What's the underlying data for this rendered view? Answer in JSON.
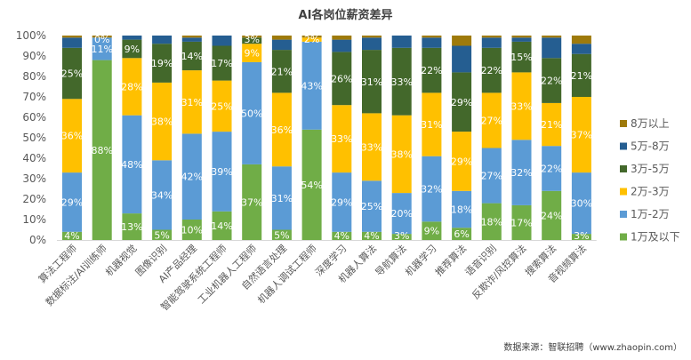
{
  "chart_data": {
    "type": "bar",
    "stacked": "percent",
    "title": "AI各岗位薪资差异",
    "xlabel": "",
    "ylabel": "",
    "ylim": [
      0,
      100
    ],
    "yticks": [
      "0%",
      "10%",
      "20%",
      "30%",
      "40%",
      "50%",
      "60%",
      "70%",
      "80%",
      "90%",
      "100%"
    ],
    "grid": false,
    "legend_position": "right",
    "categories": [
      "算法工程师",
      "数据标注/AI训练师",
      "机器视觉",
      "图像识别",
      "AI产品经理",
      "智能驾驶系统工程师",
      "工业机器人工程师",
      "自然语言处理",
      "机器人调试工程师",
      "深度学习",
      "机器人算法",
      "导航算法",
      "机器学习",
      "推荐算法",
      "语音识别",
      "反欺诈/风控算法",
      "搜索算法",
      "音视频算法"
    ],
    "series": [
      {
        "name": "1万及以下",
        "color": "#70AD47",
        "values": [
          4,
          88,
          13,
          5,
          10,
          14,
          37,
          5,
          54,
          4,
          4,
          3,
          9,
          6,
          18,
          17,
          24,
          3
        ],
        "labels": [
          "4%",
          "88%",
          "13%",
          "5%",
          "10%",
          "14%",
          "37%",
          "5%",
          "54%",
          "4%",
          "4%",
          "3%",
          "9%",
          "6%",
          "18%",
          "17%",
          "24%",
          "3%"
        ]
      },
      {
        "name": "1万-2万",
        "color": "#5B9BD5",
        "values": [
          29,
          11,
          48,
          34,
          42,
          39,
          50,
          31,
          43,
          29,
          25,
          20,
          32,
          18,
          27,
          32,
          22,
          30
        ],
        "labels": [
          "29%",
          "11%",
          "48%",
          "34%",
          "42%",
          "39%",
          "50%",
          "31%",
          "43%",
          "29%",
          "25%",
          "20%",
          "32%",
          "18%",
          "27%",
          "32%",
          "22%",
          "30%"
        ]
      },
      {
        "name": "2万-3万",
        "color": "#FFC000",
        "values": [
          36,
          0,
          28,
          38,
          31,
          25,
          9,
          36,
          2,
          33,
          33,
          38,
          31,
          29,
          27,
          33,
          21,
          37
        ],
        "labels": [
          "36%",
          "0%",
          "28%",
          "38%",
          "31%",
          "25%",
          "9%",
          "36%",
          "2%",
          "33%",
          "33%",
          "38%",
          "31%",
          "29%",
          "27%",
          "33%",
          "21%",
          "37%"
        ]
      },
      {
        "name": "3万-5万",
        "color": "#43682B",
        "values": [
          25,
          0,
          9,
          19,
          14,
          17,
          3,
          21,
          0,
          26,
          31,
          33,
          22,
          29,
          22,
          15,
          22,
          21
        ],
        "labels": [
          "25%",
          "",
          "9%",
          "19%",
          "14%",
          "17%",
          "3%",
          "21%",
          "",
          "26%",
          "31%",
          "33%",
          "22%",
          "29%",
          "22%",
          "15%",
          "22%",
          "21%"
        ]
      },
      {
        "name": "5万-8万",
        "color": "#255E91",
        "values": [
          5,
          0,
          2,
          4,
          2,
          5,
          0,
          5,
          0,
          6,
          6,
          6,
          5,
          13,
          5,
          2,
          10,
          5
        ],
        "labels": [
          "",
          "",
          "",
          "",
          "",
          "",
          "",
          "",
          "",
          "",
          "",
          "",
          "",
          "",
          "",
          "",
          "",
          ""
        ]
      },
      {
        "name": "8万以上",
        "color": "#9E7A0B",
        "values": [
          1,
          1,
          0,
          0,
          1,
          0,
          1,
          2,
          1,
          2,
          1,
          0,
          1,
          5,
          1,
          1,
          1,
          4
        ],
        "labels": [
          "",
          "",
          "",
          "",
          "",
          "",
          "",
          "",
          "",
          "",
          "",
          "",
          "",
          "",
          "",
          "",
          "",
          ""
        ]
      }
    ],
    "legend_order": [
      "8万以上",
      "5万-8万",
      "3万-5万",
      "2万-3万",
      "1万-2万",
      "1万及以下"
    ],
    "source_note": "数据来源：智联招聘（www.zhaopin.com）"
  }
}
